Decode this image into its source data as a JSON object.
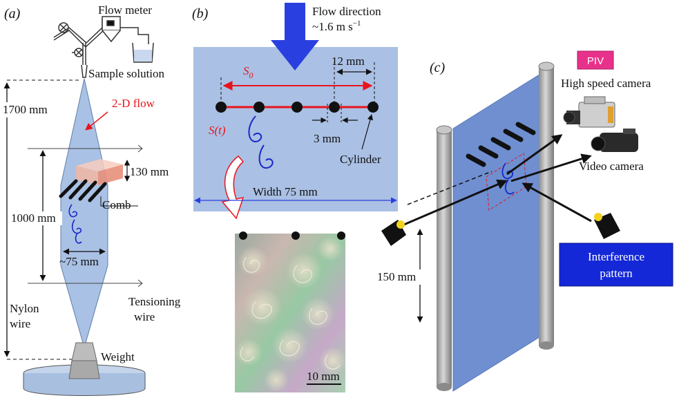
{
  "panel_a": {
    "label": "(a)",
    "flow_meter": "Flow meter",
    "sample_solution": "Sample solution",
    "flow_2d": "2-D flow",
    "dim_1700": "1700 mm",
    "dim_130": "130 mm",
    "comb": "Comb",
    "dim_1000": "1000 mm",
    "dim_75": "~75 mm",
    "nylon": "Nylon",
    "wire": "wire",
    "tensioning": "Tensioning",
    "tensioning_wire": "wire",
    "weight": "Weight"
  },
  "panel_b": {
    "label": "(b)",
    "flow_direction": "Flow direction",
    "flow_speed": "~1.6 m s",
    "flow_speed_exp": "−1",
    "s0": "S",
    "s0_sub": "0",
    "st": "S(t)",
    "dim_12": "12 mm",
    "dim_3": "3 mm",
    "cylinder": "Cylinder",
    "width": "Width 75 mm",
    "scale": "10 mm"
  },
  "panel_c": {
    "label": "(c)",
    "piv": "PIV",
    "high_speed_camera": "High speed camera",
    "video_camera": "Video camera",
    "dim_150": "150 mm",
    "interference_line1": "Interference",
    "interference_line2": "pattern"
  },
  "colors": {
    "film_blue": "#a9c1e4",
    "arrow_blue": "#2a3fe0",
    "red": "#e8141b",
    "piv_badge": "#e8318a",
    "interference_badge": "#1428d8"
  }
}
